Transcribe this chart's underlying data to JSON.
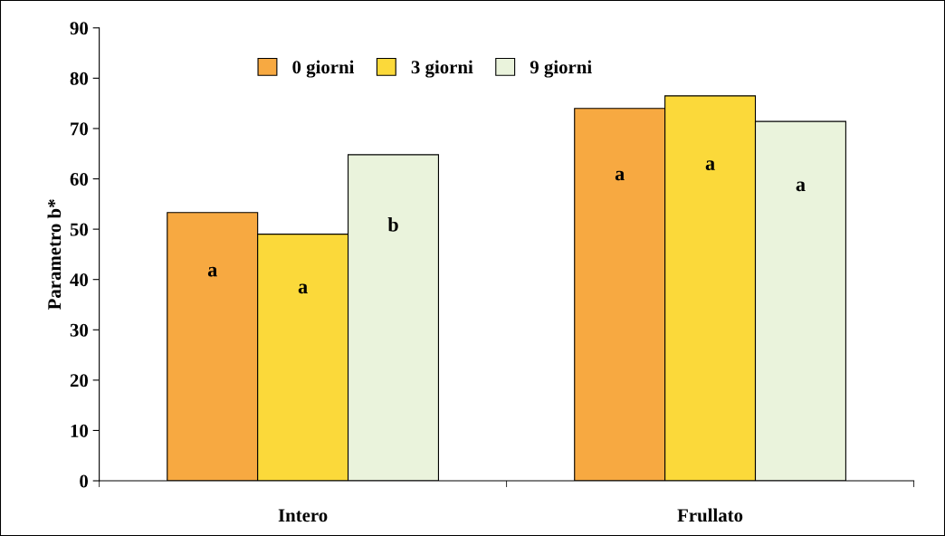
{
  "chart_data": {
    "type": "bar",
    "ylabel": "Parametro b*",
    "categories": [
      "Intero",
      "Frullato"
    ],
    "series": [
      {
        "name": "0 giorni",
        "color": "#f7a941",
        "values": [
          53.3,
          74.0
        ],
        "value_labels": [
          "a",
          "a"
        ]
      },
      {
        "name": "3 giorni",
        "color": "#fbd93a",
        "values": [
          49.0,
          76.5
        ],
        "value_labels": [
          "a",
          "a"
        ]
      },
      {
        "name": "9 giorni",
        "color": "#eaf3dc",
        "values": [
          64.8,
          71.4
        ],
        "value_labels": [
          "b",
          "a"
        ]
      }
    ],
    "ylim": [
      0,
      90
    ],
    "yticks": [
      0,
      10,
      20,
      30,
      40,
      50,
      60,
      70,
      80,
      90
    ],
    "grid": false,
    "legend": "top"
  }
}
